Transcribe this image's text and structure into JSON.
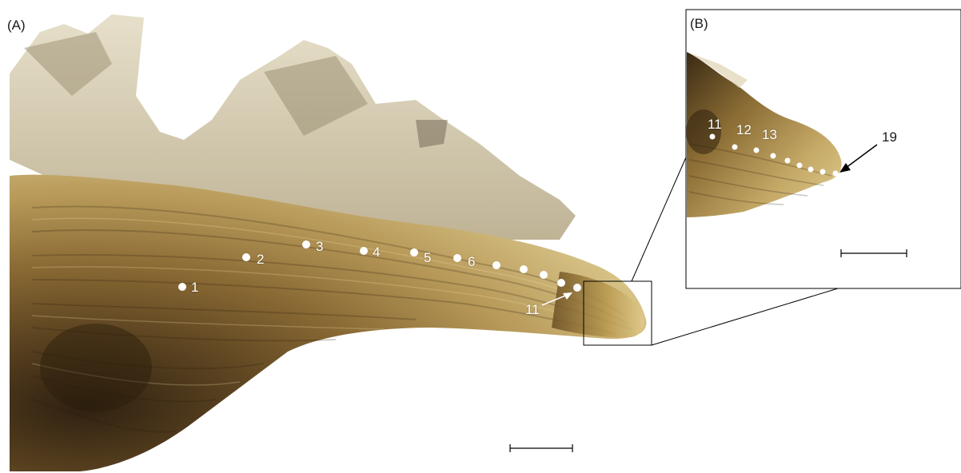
{
  "panels": {
    "a": {
      "label": "(A)"
    },
    "b": {
      "label": "(B)"
    }
  },
  "annual_marks_a": [
    "1",
    "2",
    "3",
    "4",
    "5",
    "6",
    "11"
  ],
  "annual_marks_b": [
    "11",
    "12",
    "13",
    "19"
  ],
  "colors": {
    "background": "#ffffff",
    "otolith_dark": "#3a2a14",
    "otolith_mid": "#7a5a2a",
    "otolith_light": "#d8c488",
    "translucent_edge": "#e6dcc0",
    "marker": "#ffffff",
    "frame": "#000000"
  }
}
